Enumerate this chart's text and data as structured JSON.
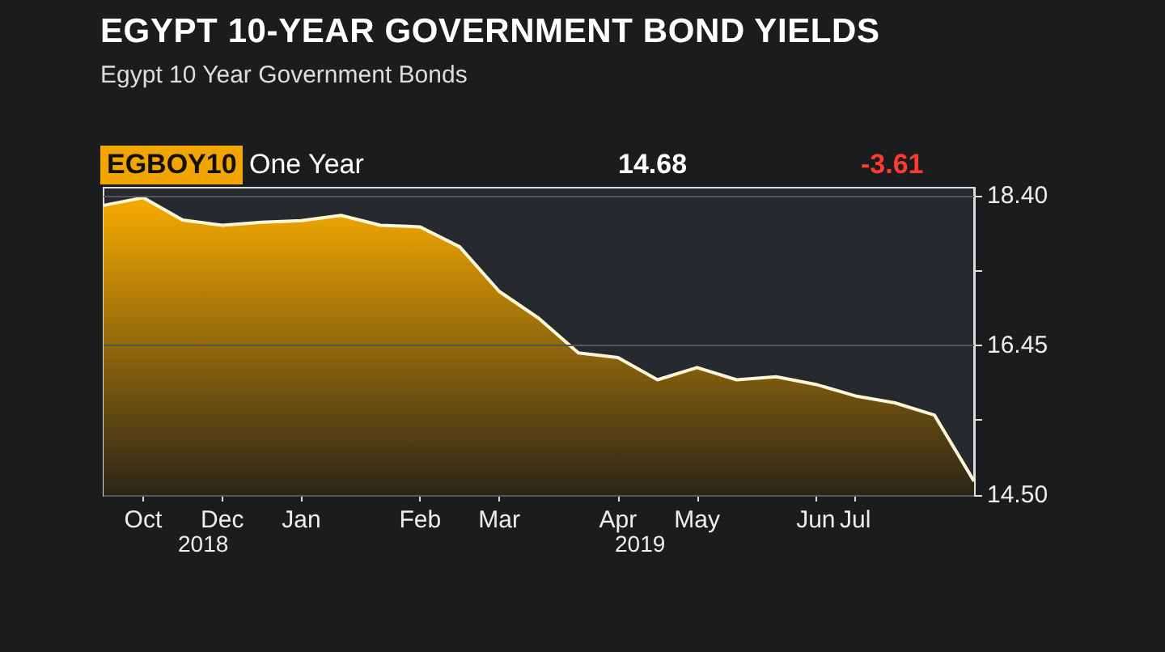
{
  "chart_data": {
    "type": "area",
    "title": "EGYPT 10-YEAR GOVERNMENT BOND YIELDS",
    "subtitle": "Egypt 10 Year Government Bonds",
    "annotations": [
      "EGBOY10",
      "One Year",
      "14.68",
      "-3.61",
      "2018",
      "2019"
    ],
    "categories": [
      null,
      "Oct",
      null,
      "Dec",
      null,
      "Jan",
      null,
      null,
      "Feb",
      null,
      "Mar",
      null,
      null,
      "Apr",
      null,
      "May",
      null,
      null,
      "Jun",
      "Jul",
      null,
      null,
      null
    ],
    "series": [
      {
        "color": "#f7ab00",
        "values": [
          18.27,
          18.37,
          18.08,
          18.01,
          18.05,
          18.07,
          18.14,
          18.01,
          17.99,
          17.73,
          17.15,
          16.8,
          16.35,
          16.29,
          16.0,
          16.16,
          16.0,
          16.04,
          15.94,
          15.79,
          15.7,
          15.54,
          14.68
        ]
      }
    ],
    "ylim": [
      14.5,
      18.5
    ],
    "yticks": [
      {
        "value": 14.5,
        "label": "14.50"
      },
      {
        "value": 15.475,
        "label": null
      },
      16.45,
      {
        "value": 17.425,
        "label": null
      },
      {
        "value": 18.4,
        "label": "18.40"
      }
    ],
    "grid": "y",
    "marker": "none",
    "line_style": "solid"
  }
}
